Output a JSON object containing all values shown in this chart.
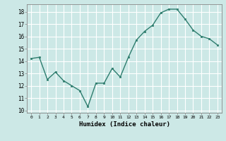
{
  "x": [
    0,
    1,
    2,
    3,
    4,
    5,
    6,
    7,
    8,
    9,
    10,
    11,
    12,
    13,
    14,
    15,
    16,
    17,
    18,
    19,
    20,
    21,
    22,
    23
  ],
  "y": [
    14.2,
    14.3,
    12.5,
    13.1,
    12.4,
    12.0,
    11.6,
    10.3,
    12.2,
    12.2,
    13.4,
    12.7,
    14.3,
    15.7,
    16.4,
    16.9,
    17.9,
    18.2,
    18.2,
    17.4,
    16.5,
    16.0,
    15.8,
    15.3
  ],
  "xlim": [
    -0.5,
    23.5
  ],
  "ylim": [
    9.8,
    18.6
  ],
  "yticks": [
    10,
    11,
    12,
    13,
    14,
    15,
    16,
    17,
    18
  ],
  "xticks": [
    0,
    1,
    2,
    3,
    4,
    5,
    6,
    7,
    8,
    9,
    10,
    11,
    12,
    13,
    14,
    15,
    16,
    17,
    18,
    19,
    20,
    21,
    22,
    23
  ],
  "xlabel": "Humidex (Indice chaleur)",
  "line_color": "#2e7d6e",
  "bg_color": "#cce8e6",
  "grid_color_major": "#ffffff",
  "grid_color_minor": "#ffffff",
  "spine_color": "#888888"
}
